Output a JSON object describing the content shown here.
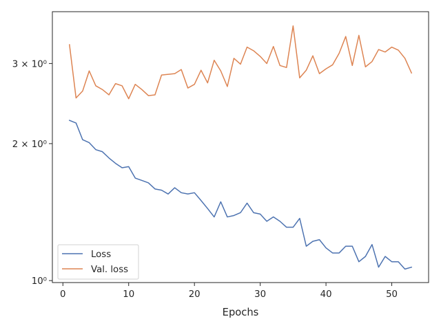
{
  "chart_data": {
    "type": "line",
    "title": "",
    "xlabel": "Epochs",
    "ylabel": "",
    "yscale": "log",
    "xlim": [
      -1.6,
      55.6
    ],
    "ylim": [
      0.99,
      3.9
    ],
    "grid": false,
    "legend_placement": "lower-left",
    "x_ticks": [
      0,
      10,
      20,
      30,
      40,
      50
    ],
    "x_tick_labels": [
      "0",
      "10",
      "20",
      "30",
      "40",
      "50"
    ],
    "y_ticks": [
      {
        "value": 1,
        "label": "10⁰"
      },
      {
        "value": 2,
        "label": "2 × 10⁰"
      },
      {
        "value": 3,
        "label": "3 × 10⁰"
      }
    ],
    "x": [
      1,
      2,
      3,
      4,
      5,
      6,
      7,
      8,
      9,
      10,
      11,
      12,
      13,
      14,
      15,
      16,
      17,
      18,
      19,
      20,
      21,
      22,
      23,
      24,
      25,
      26,
      27,
      28,
      29,
      30,
      31,
      32,
      33,
      34,
      35,
      36,
      37,
      38,
      39,
      40,
      41,
      42,
      43,
      44,
      45,
      46,
      47,
      48,
      49,
      50,
      51,
      52,
      53
    ],
    "series": [
      {
        "name": "Loss",
        "color": "#4c72b0",
        "values": [
          2.25,
          2.22,
          2.04,
          2.01,
          1.94,
          1.92,
          1.86,
          1.81,
          1.77,
          1.78,
          1.68,
          1.66,
          1.64,
          1.59,
          1.58,
          1.55,
          1.6,
          1.56,
          1.55,
          1.56,
          1.5,
          1.44,
          1.38,
          1.49,
          1.38,
          1.39,
          1.41,
          1.48,
          1.41,
          1.4,
          1.35,
          1.38,
          1.35,
          1.31,
          1.31,
          1.37,
          1.19,
          1.22,
          1.23,
          1.18,
          1.15,
          1.15,
          1.19,
          1.19,
          1.1,
          1.13,
          1.2,
          1.07,
          1.13,
          1.1,
          1.1,
          1.06,
          1.07
        ]
      },
      {
        "name": "Val. loss",
        "color": "#dd8452",
        "values": [
          3.3,
          2.52,
          2.61,
          2.89,
          2.68,
          2.63,
          2.56,
          2.71,
          2.68,
          2.51,
          2.7,
          2.63,
          2.55,
          2.56,
          2.83,
          2.84,
          2.85,
          2.91,
          2.65,
          2.7,
          2.9,
          2.72,
          3.05,
          2.89,
          2.67,
          3.08,
          2.99,
          3.26,
          3.2,
          3.11,
          3.0,
          3.27,
          2.97,
          2.94,
          3.63,
          2.79,
          2.9,
          3.12,
          2.85,
          2.92,
          2.98,
          3.16,
          3.44,
          2.97,
          3.46,
          2.95,
          3.03,
          3.22,
          3.18,
          3.26,
          3.21,
          3.08,
          2.86
        ]
      }
    ]
  }
}
